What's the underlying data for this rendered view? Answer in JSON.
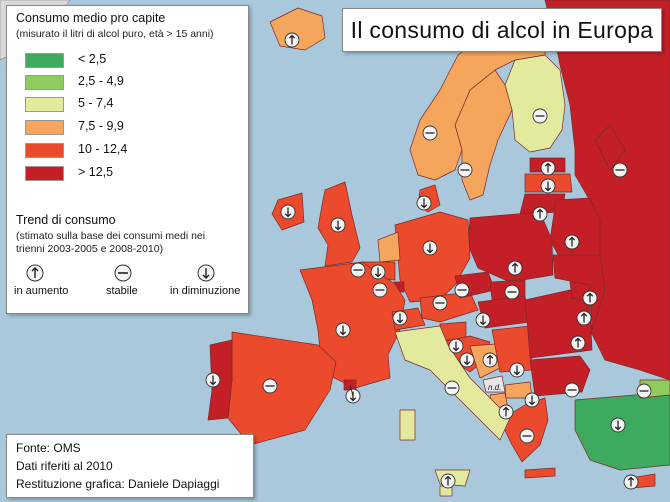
{
  "title": "Il consumo di alcol in Europa",
  "legend": {
    "heading": "Consumo medio pro capite",
    "subheading": "(misurato il litri di alcol puro, età > 15 anni)",
    "classes": [
      {
        "label": "< 2,5",
        "color": "#3daa5f"
      },
      {
        "label": "2,5 - 4,9",
        "color": "#8fcb5d"
      },
      {
        "label": "5 - 7,4",
        "color": "#e3ea9e"
      },
      {
        "label": "7,5 - 9,9",
        "color": "#f6a65c"
      },
      {
        "label": "10 - 12,4",
        "color": "#ec4a2c"
      },
      {
        "label": "> 12,5",
        "color": "#c41f26"
      }
    ],
    "trend_heading": "Trend di consumo",
    "trend_sub_1": "(stimato sulla base dei consumi medi nei",
    "trend_sub_2": "trienni 2003-2005 e 2008-2010)",
    "trend_items": [
      {
        "label": "in aumento",
        "icon": "arrow-up-icon"
      },
      {
        "label": "stabile",
        "icon": "minus-icon"
      },
      {
        "label": "in diminuzione",
        "icon": "arrow-down-icon"
      }
    ]
  },
  "credits": {
    "line1": "Fonte: OMS",
    "line2": "Dati riferiti al 2010",
    "line3": "Restituzione grafica: Daniele Dapiaggi"
  },
  "map": {
    "sea_color": "#a9c8dc",
    "border_color": "#7a2a2a",
    "na_label": "n.d.",
    "countries": [
      {
        "name": "Russia",
        "class": 5,
        "trend": "stable"
      },
      {
        "name": "Finland",
        "class": 2,
        "trend": "stable"
      },
      {
        "name": "Sweden",
        "class": 3,
        "trend": "stable"
      },
      {
        "name": "Norway",
        "class": 3,
        "trend": "stable"
      },
      {
        "name": "Iceland",
        "class": 3,
        "trend": "up"
      },
      {
        "name": "United Kingdom",
        "class": 4,
        "trend": "down"
      },
      {
        "name": "Ireland",
        "class": 4,
        "trend": "down"
      },
      {
        "name": "Denmark",
        "class": 4,
        "trend": "down"
      },
      {
        "name": "Estonia",
        "class": 5,
        "trend": "up"
      },
      {
        "name": "Latvia",
        "class": 4,
        "trend": "down"
      },
      {
        "name": "Lithuania",
        "class": 5,
        "trend": "up"
      },
      {
        "name": "Belarus",
        "class": 5,
        "trend": "up"
      },
      {
        "name": "Poland",
        "class": 5,
        "trend": "up"
      },
      {
        "name": "Germany",
        "class": 4,
        "trend": "down"
      },
      {
        "name": "Netherlands",
        "class": 3,
        "trend": "down"
      },
      {
        "name": "Belgium",
        "class": 4,
        "trend": "stable"
      },
      {
        "name": "Luxembourg",
        "class": 5,
        "trend": "stable"
      },
      {
        "name": "France",
        "class": 4,
        "trend": "down"
      },
      {
        "name": "Switzerland",
        "class": 4,
        "trend": "down"
      },
      {
        "name": "Austria",
        "class": 4,
        "trend": "stable"
      },
      {
        "name": "Czech Republic",
        "class": 5,
        "trend": "stable"
      },
      {
        "name": "Slovakia",
        "class": 5,
        "trend": "stable"
      },
      {
        "name": "Hungary",
        "class": 5,
        "trend": "down"
      },
      {
        "name": "Slovenia",
        "class": 4,
        "trend": "down"
      },
      {
        "name": "Croatia",
        "class": 4,
        "trend": "down"
      },
      {
        "name": "Bosnia and Herzegovina",
        "class": 3,
        "trend": "up"
      },
      {
        "name": "Serbia",
        "class": 4,
        "trend": "down"
      },
      {
        "name": "Montenegro",
        "class": null,
        "trend": null
      },
      {
        "name": "Albania",
        "class": 3,
        "trend": "up"
      },
      {
        "name": "North Macedonia",
        "class": 3,
        "trend": "down"
      },
      {
        "name": "Bulgaria",
        "class": 5,
        "trend": "stable"
      },
      {
        "name": "Romania",
        "class": 5,
        "trend": "up"
      },
      {
        "name": "Moldova",
        "class": 5,
        "trend": "up"
      },
      {
        "name": "Ukraine",
        "class": 5,
        "trend": "up"
      },
      {
        "name": "Greece",
        "class": 4,
        "trend": "stable"
      },
      {
        "name": "Turkey",
        "class": 0,
        "trend": "down"
      },
      {
        "name": "Cyprus",
        "class": 4,
        "trend": "up"
      },
      {
        "name": "Italy",
        "class": 2,
        "trend": "stable"
      },
      {
        "name": "Spain",
        "class": 4,
        "trend": "stable"
      },
      {
        "name": "Portugal",
        "class": 5,
        "trend": "down"
      },
      {
        "name": "Malta",
        "class": 2,
        "trend": "up"
      },
      {
        "name": "Andorra",
        "class": 5,
        "trend": "down"
      },
      {
        "name": "Georgia",
        "class": 1,
        "trend": "stable"
      }
    ]
  }
}
